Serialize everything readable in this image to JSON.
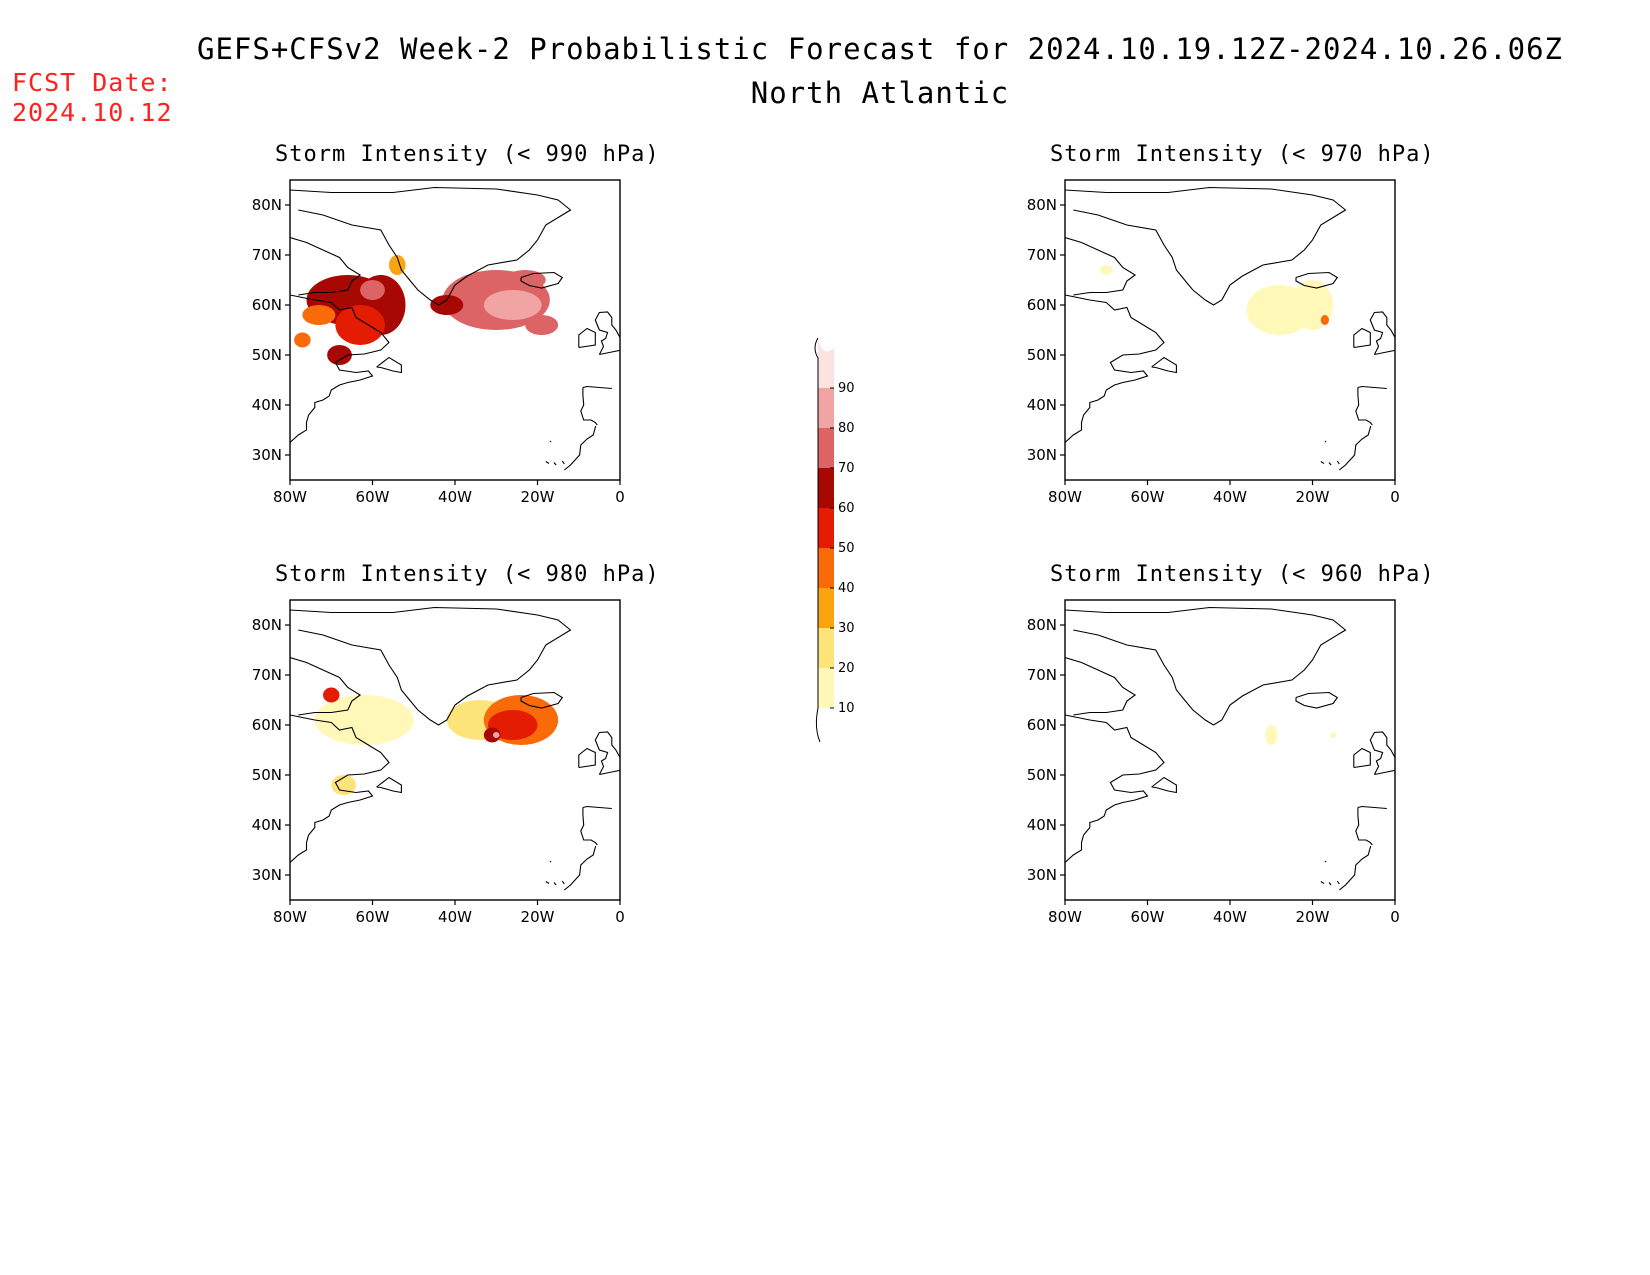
{
  "header": {
    "title": "GEFS+CFSv2 Week-2 Probabilistic Forecast for 2024.10.19.12Z-2024.10.26.06Z",
    "subtitle": "North Atlantic",
    "fcst_label": "FCST Date:",
    "fcst_date": "2024.10.12"
  },
  "axes": {
    "lat_ticks": [
      "80N",
      "70N",
      "60N",
      "50N",
      "40N",
      "30N"
    ],
    "lon_ticks": [
      "80W",
      "60W",
      "40W",
      "20W",
      "0"
    ],
    "lon_range": [
      -80,
      0
    ],
    "lat_range": [
      25,
      85
    ]
  },
  "colorbar": {
    "levels": [
      "10",
      "20",
      "30",
      "40",
      "50",
      "60",
      "70",
      "80",
      "90"
    ],
    "colors": [
      "#fff8b8",
      "#fde47a",
      "#fca40f",
      "#f96a08",
      "#e41c02",
      "#a80804",
      "#dd6464",
      "#f1a4a4",
      "#fde2e2"
    ]
  },
  "panels": [
    {
      "title": "Storm Intensity (< 990 hPa)",
      "regions": [
        {
          "lon": -66,
          "lat": 61,
          "rx": 10,
          "ry": 5,
          "level": 5
        },
        {
          "lon": -58,
          "lat": 60,
          "rx": 6,
          "ry": 6,
          "level": 5
        },
        {
          "lon": -63,
          "lat": 56,
          "rx": 6,
          "ry": 4,
          "level": 4
        },
        {
          "lon": -73,
          "lat": 58,
          "rx": 4,
          "ry": 2,
          "level": 3
        },
        {
          "lon": -60,
          "lat": 63,
          "rx": 3,
          "ry": 2,
          "level": 6
        },
        {
          "lon": -68,
          "lat": 50,
          "rx": 3,
          "ry": 2,
          "level": 5
        },
        {
          "lon": -77,
          "lat": 53,
          "rx": 2,
          "ry": 1.5,
          "level": 3
        },
        {
          "lon": -54,
          "lat": 68,
          "rx": 2,
          "ry": 2,
          "level": 2
        },
        {
          "lon": -30,
          "lat": 61,
          "rx": 13,
          "ry": 6,
          "level": 6
        },
        {
          "lon": -26,
          "lat": 60,
          "rx": 7,
          "ry": 3,
          "level": 7
        },
        {
          "lon": -42,
          "lat": 60,
          "rx": 4,
          "ry": 2,
          "level": 5
        },
        {
          "lon": -19,
          "lat": 56,
          "rx": 4,
          "ry": 2,
          "level": 6
        },
        {
          "lon": -23,
          "lat": 65,
          "rx": 5,
          "ry": 2,
          "level": 6
        }
      ]
    },
    {
      "title": "Storm Intensity (< 970 hPa)",
      "regions": [
        {
          "lon": -28,
          "lat": 59,
          "rx": 8,
          "ry": 5,
          "level": 0
        },
        {
          "lon": -20,
          "lat": 60,
          "rx": 5,
          "ry": 5,
          "level": 0
        },
        {
          "lon": -17,
          "lat": 57,
          "rx": 1,
          "ry": 1,
          "level": 3
        },
        {
          "lon": -70,
          "lat": 67,
          "rx": 1.5,
          "ry": 1,
          "level": 0
        }
      ]
    },
    {
      "title": "Storm Intensity (< 980 hPa)",
      "regions": [
        {
          "lon": -62,
          "lat": 61,
          "rx": 12,
          "ry": 5,
          "level": 0
        },
        {
          "lon": -70,
          "lat": 66,
          "rx": 2,
          "ry": 1.5,
          "level": 4
        },
        {
          "lon": -67,
          "lat": 48,
          "rx": 3,
          "ry": 2,
          "level": 1
        },
        {
          "lon": -34,
          "lat": 61,
          "rx": 8,
          "ry": 4,
          "level": 1
        },
        {
          "lon": -24,
          "lat": 61,
          "rx": 9,
          "ry": 5,
          "level": 3
        },
        {
          "lon": -26,
          "lat": 60,
          "rx": 6,
          "ry": 3,
          "level": 4
        },
        {
          "lon": -31,
          "lat": 58,
          "rx": 2,
          "ry": 1.5,
          "level": 5
        },
        {
          "lon": -30,
          "lat": 58,
          "rx": 0.8,
          "ry": 0.6,
          "level": 7
        }
      ]
    },
    {
      "title": "Storm Intensity (< 960 hPa)",
      "regions": [
        {
          "lon": -30,
          "lat": 58,
          "rx": 1.5,
          "ry": 2,
          "level": 0
        },
        {
          "lon": -15,
          "lat": 58,
          "rx": 0.7,
          "ry": 0.6,
          "level": 0
        }
      ]
    }
  ]
}
